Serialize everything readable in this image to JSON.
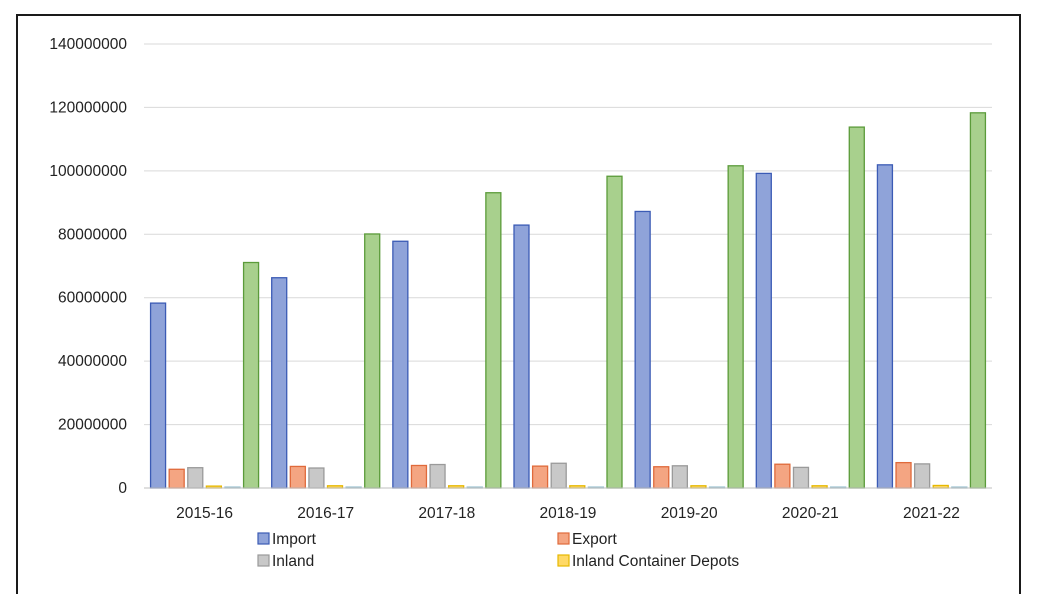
{
  "chart_data": {
    "type": "bar",
    "title": "",
    "xlabel": "",
    "ylabel": "",
    "categories": [
      "2015-16",
      "2016-17",
      "2017-18",
      "2018-19",
      "2019-20",
      "2020-21",
      "2021-22"
    ],
    "ylim": [
      0,
      140000000
    ],
    "yticks": [
      "0",
      "20000000",
      "40000000",
      "60000000",
      "80000000",
      "100000000",
      "120000000",
      "140000000"
    ],
    "grid": true,
    "legend_position": "bottom",
    "series": [
      {
        "name": "Import",
        "color": "#8fa3d9",
        "stroke": "#3b5bb5",
        "values": [
          58300000,
          66300000,
          77800000,
          82900000,
          87200000,
          99200000,
          101900000
        ]
      },
      {
        "name": "Export",
        "color": "#f4a582",
        "stroke": "#e06a3b",
        "values": [
          5900000,
          6800000,
          7100000,
          6900000,
          6700000,
          7500000,
          8000000
        ]
      },
      {
        "name": "Inland",
        "color": "#c8c8c8",
        "stroke": "#9a9a9a",
        "values": [
          6400000,
          6300000,
          7400000,
          7800000,
          7000000,
          6500000,
          7600000
        ]
      },
      {
        "name": "Inland Container Depots",
        "color": "#ffd966",
        "stroke": "#e6b800",
        "values": [
          600000,
          700000,
          700000,
          700000,
          700000,
          700000,
          800000
        ]
      },
      {
        "name": "",
        "color": "#c5dfe8",
        "stroke": "#9cc3d1",
        "values": [
          300000,
          300000,
          300000,
          300000,
          300000,
          300000,
          300000
        ]
      },
      {
        "name": "",
        "color": "#a8d08d",
        "stroke": "#5b9b3a",
        "values": [
          71100000,
          80100000,
          93100000,
          98300000,
          101600000,
          113800000,
          118300000
        ]
      }
    ]
  }
}
